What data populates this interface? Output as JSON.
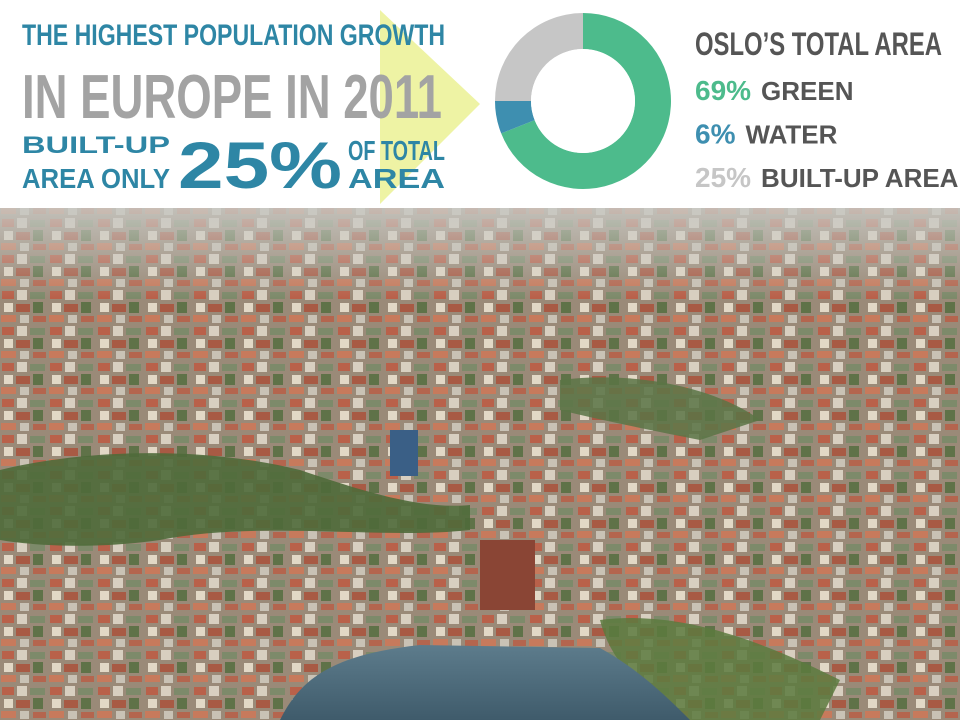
{
  "headline": {
    "line1": "THE HIGHEST POPULATION GROWTH",
    "line2": "IN EUROPE IN 2011",
    "builtup": [
      "BUILT-UP",
      "AREA ONLY"
    ],
    "figure": "25%",
    "suffix": [
      "OF TOTAL",
      "AREA"
    ]
  },
  "chart_data": {
    "type": "donut",
    "title": "OSLO’S TOTAL AREA",
    "categories": [
      "GREEN",
      "WATER",
      "BUILT-UP AREA"
    ],
    "values": [
      69,
      6,
      25
    ],
    "value_labels": [
      "69%",
      "6%",
      "25%"
    ],
    "colors": [
      "#4dbb8c",
      "#3e8fb0",
      "#c6c6c6"
    ]
  }
}
